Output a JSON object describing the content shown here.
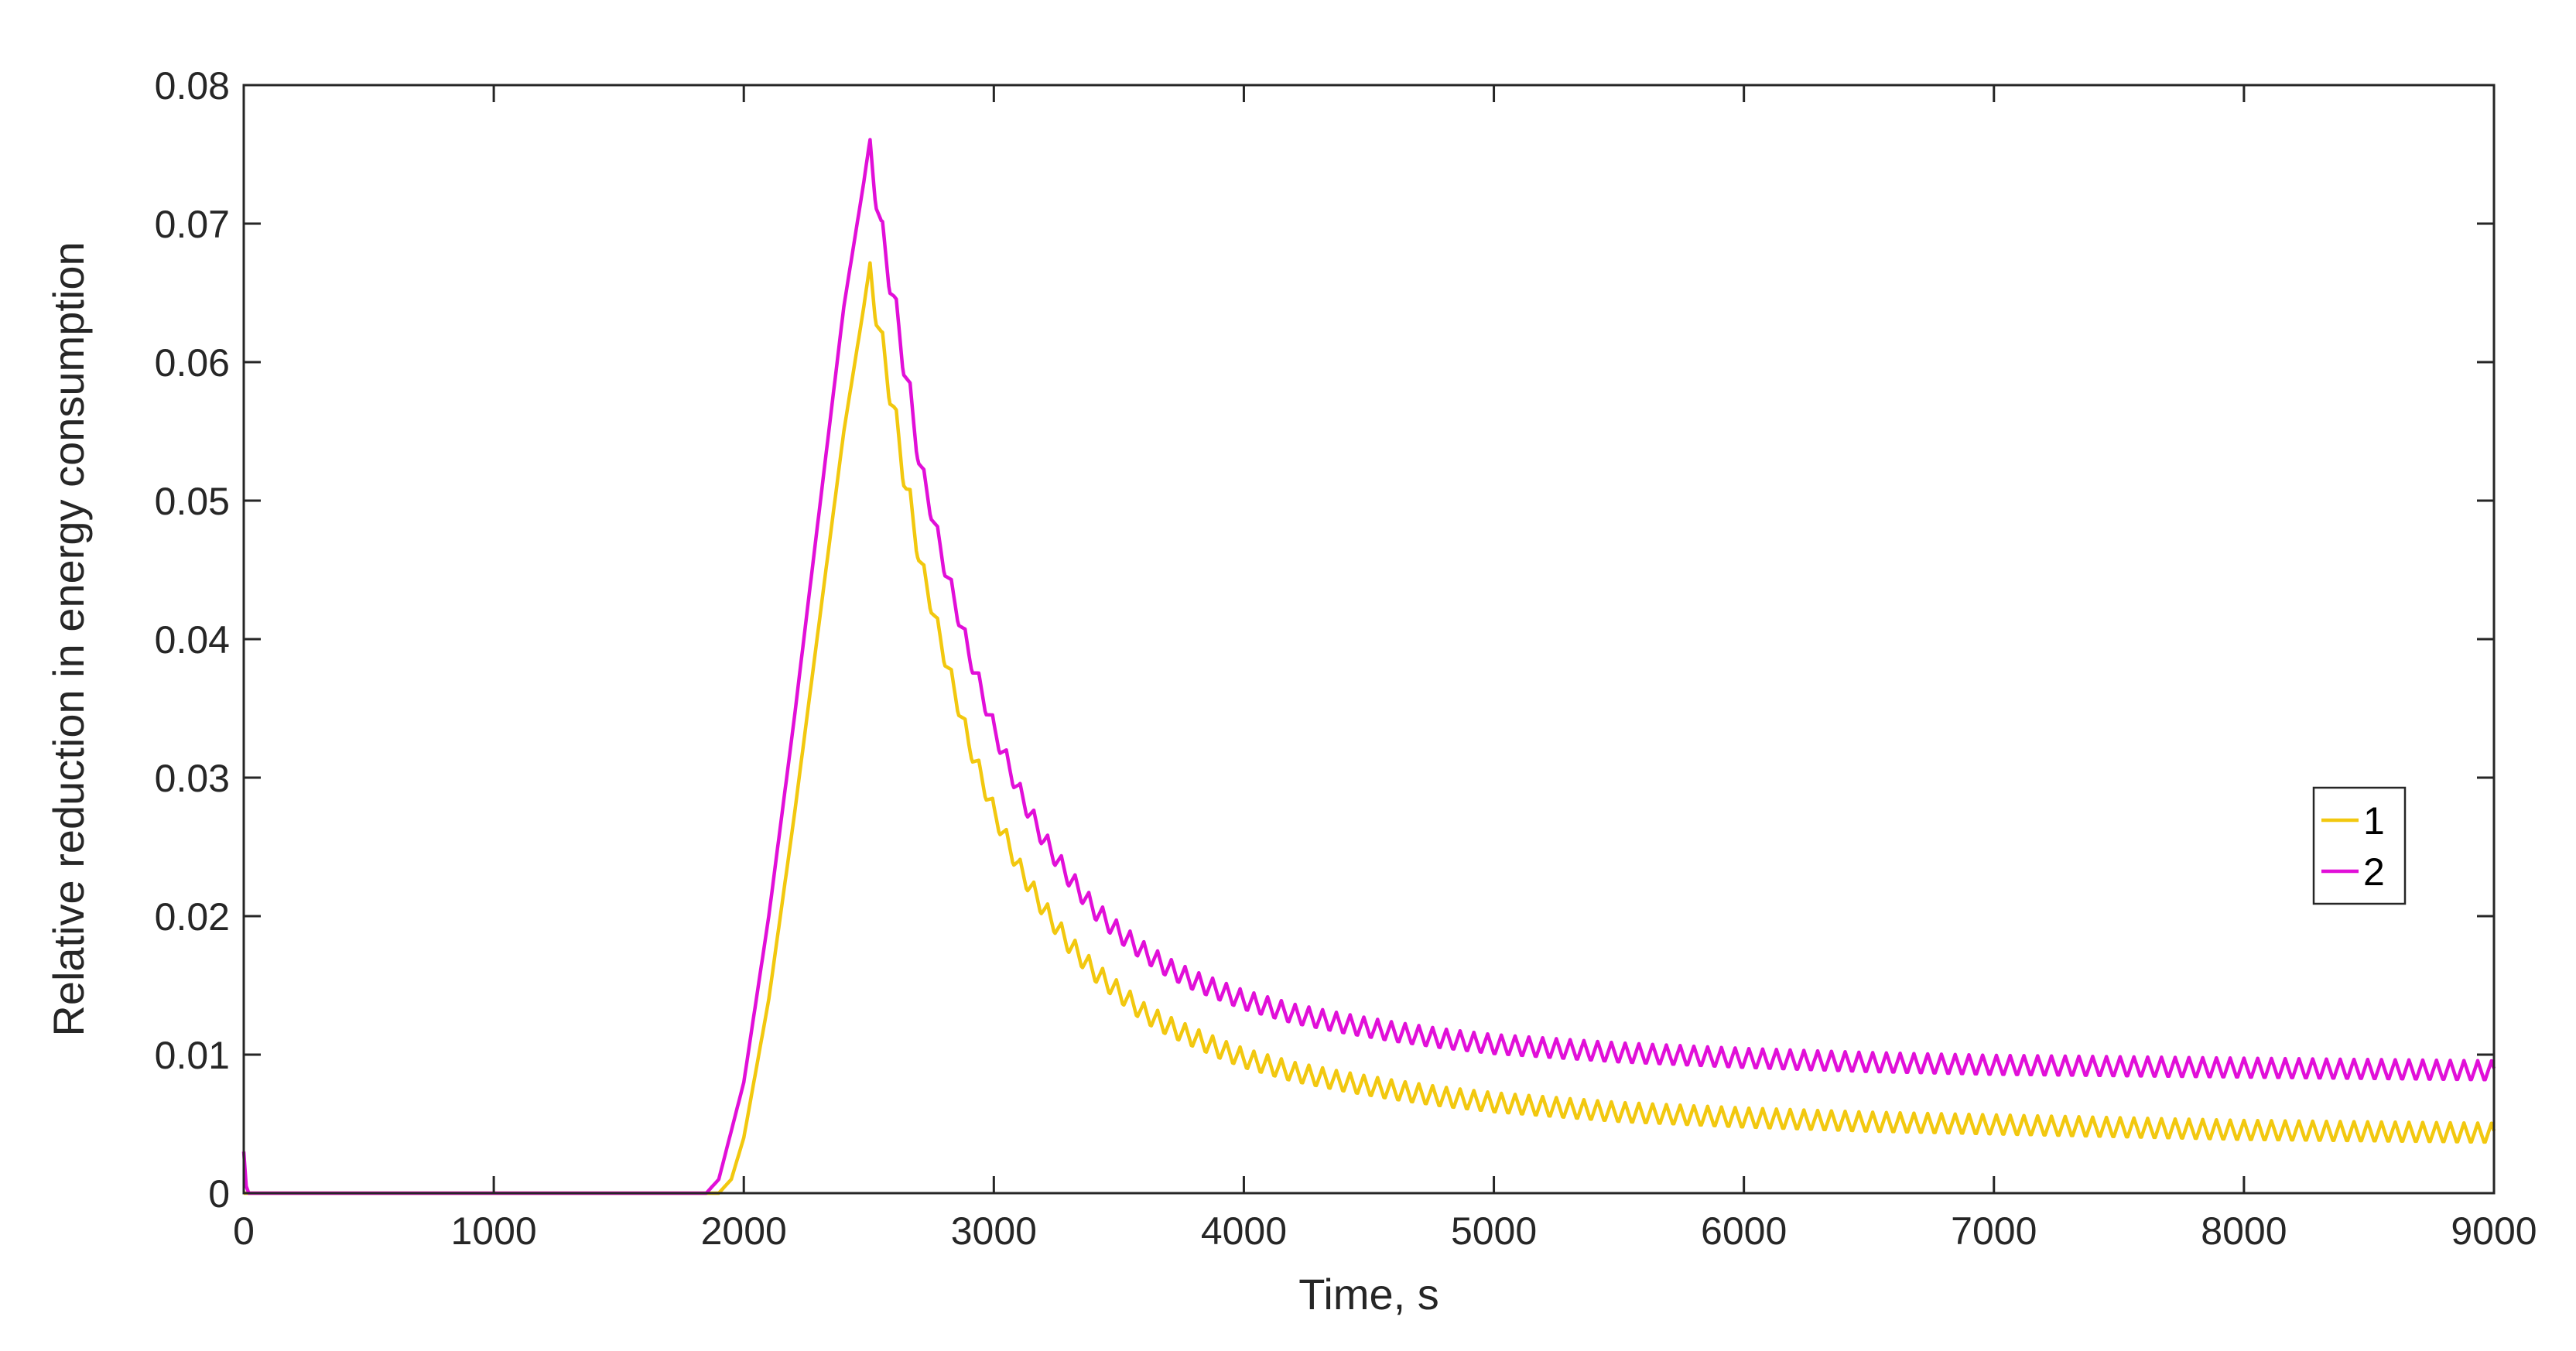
{
  "chart_data": {
    "type": "line",
    "title": "",
    "xlabel": "Time, s",
    "ylabel": "Relative reduction in energy consumption",
    "xlim": [
      0,
      9000
    ],
    "ylim": [
      0,
      0.08
    ],
    "x_ticks": [
      0,
      1000,
      2000,
      3000,
      4000,
      5000,
      6000,
      7000,
      8000,
      9000
    ],
    "x_tick_labels": [
      "0",
      "1000",
      "2000",
      "3000",
      "4000",
      "5000",
      "6000",
      "7000",
      "8000",
      "9000"
    ],
    "y_ticks": [
      0,
      0.01,
      0.02,
      0.03,
      0.04,
      0.05,
      0.06,
      0.07,
      0.08
    ],
    "y_tick_labels": [
      "0",
      "0.01",
      "0.02",
      "0.03",
      "0.04",
      "0.05",
      "0.06",
      "0.07",
      "0.08"
    ],
    "grid": false,
    "legend_position": "right",
    "series": [
      {
        "name": "1",
        "color": "#f2c80f",
        "x": [
          0,
          20,
          1900,
          1950,
          2000,
          2100,
          2200,
          2300,
          2400,
          2480,
          2500,
          2550,
          2600,
          2650,
          2700,
          2800,
          2900,
          3000,
          3100,
          3200,
          3300,
          3400,
          3500,
          3600,
          3700,
          3800,
          3900,
          4000,
          4200,
          4400,
          4600,
          4800,
          5000,
          5500,
          6000,
          6500,
          7000,
          7500,
          8000,
          8500,
          9000
        ],
        "y": [
          0.0,
          0.0,
          0.0,
          0.001,
          0.004,
          0.014,
          0.027,
          0.041,
          0.055,
          0.064,
          0.0665,
          0.061,
          0.056,
          0.0505,
          0.046,
          0.039,
          0.0325,
          0.0275,
          0.0235,
          0.0205,
          0.018,
          0.016,
          0.0145,
          0.013,
          0.012,
          0.0112,
          0.0104,
          0.0097,
          0.0087,
          0.008,
          0.0074,
          0.0069,
          0.0065,
          0.0058,
          0.0054,
          0.0051,
          0.0049,
          0.0047,
          0.0045,
          0.0044,
          0.0043
        ],
        "oscillation_amplitude": 0.0015,
        "oscillation_period": 55
      },
      {
        "name": "2",
        "color": "#e10fd8",
        "x": [
          0,
          10,
          20,
          1850,
          1900,
          2000,
          2100,
          2200,
          2300,
          2400,
          2480,
          2500,
          2550,
          2600,
          2650,
          2700,
          2800,
          2900,
          3000,
          3100,
          3200,
          3300,
          3400,
          3500,
          3600,
          3700,
          3800,
          3900,
          4000,
          4200,
          4400,
          4600,
          4800,
          5000,
          5500,
          6000,
          6500,
          7000,
          7500,
          8000,
          8500,
          9000
        ],
        "y": [
          0.003,
          0.0005,
          0.0,
          0.0,
          0.001,
          0.008,
          0.02,
          0.034,
          0.049,
          0.064,
          0.073,
          0.0755,
          0.069,
          0.064,
          0.0585,
          0.053,
          0.0455,
          0.039,
          0.0335,
          0.029,
          0.0255,
          0.0228,
          0.0205,
          0.0188,
          0.0174,
          0.0162,
          0.0153,
          0.0146,
          0.0139,
          0.0129,
          0.0122,
          0.0116,
          0.0111,
          0.0107,
          0.0101,
          0.0097,
          0.0094,
          0.0092,
          0.0091,
          0.009,
          0.0089,
          0.0088
        ],
        "oscillation_amplitude": 0.0015,
        "oscillation_period": 55
      }
    ]
  }
}
